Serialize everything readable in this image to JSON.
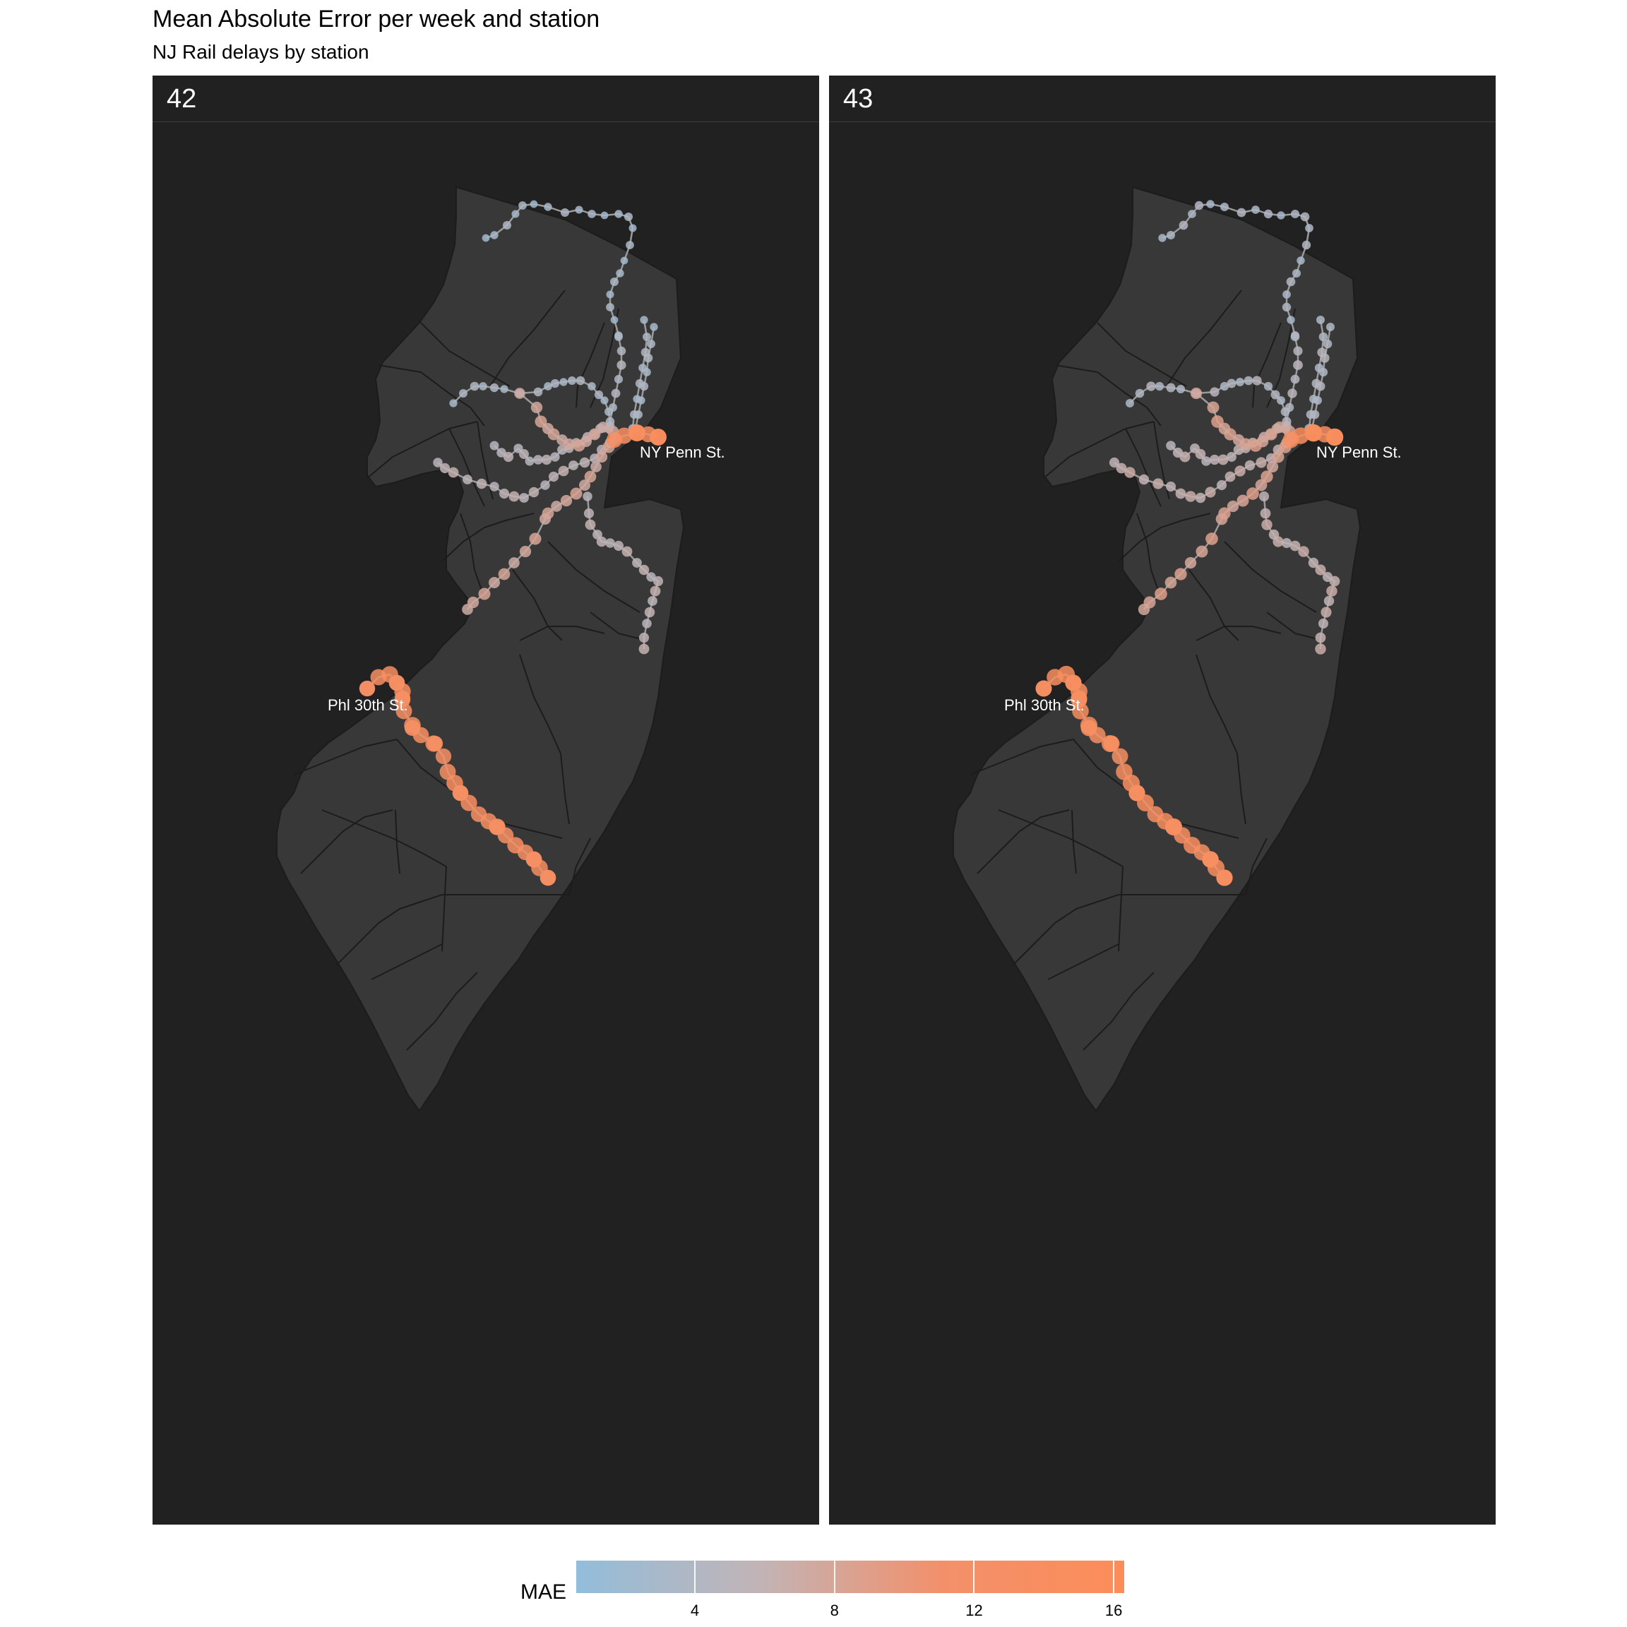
{
  "title": "Mean Absolute Error per week and station",
  "subtitle": "NJ Rail delays by station",
  "panels": [
    {
      "label": "42"
    },
    {
      "label": "43"
    }
  ],
  "callouts": {
    "ny": "NY Penn St.",
    "phl": "Phl 30th St."
  },
  "legend": {
    "title": "MAE",
    "ticks": [
      "4",
      "8",
      "12",
      "16"
    ],
    "tick_values": [
      4,
      8,
      12,
      16
    ],
    "min": 0.6,
    "max": 16.3,
    "colors": [
      "#92bddb",
      "#c2b4b6",
      "#f3906b",
      "#fc8d59"
    ]
  },
  "colors": {
    "panel_background": "#212121",
    "state_fill": "#383838",
    "county_lines": "#1c1c1c",
    "rail_line": "#9a9a9a"
  }
}
